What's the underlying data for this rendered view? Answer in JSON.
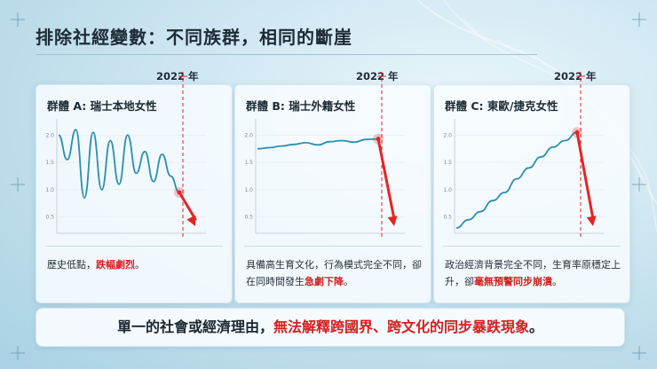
{
  "slide": {
    "title": "排除社經變數：不同族群，相同的斷崖",
    "marker_year": "2022 年",
    "colors": {
      "line": "#2c8fb0",
      "drop_arrow": "#e52423",
      "highlight_text": "#d2201f",
      "marker_line": "#e0242a"
    },
    "y_axis_ticks": [
      "2.0",
      "1.5",
      "1.0",
      "0.5"
    ]
  },
  "cards": [
    {
      "title": "群體 A: 瑞士本地女性",
      "text_before": "歷史低點，",
      "text_highlight": "跌幅劇烈",
      "text_after": "。"
    },
    {
      "title": "群體 B: 瑞士外籍女性",
      "text_before": "具備高生育文化，行為模式完全不同，卻在同時間發生",
      "text_highlight": "急劇下降",
      "text_after": "。"
    },
    {
      "title": "群體 C: 東歐/捷克女性",
      "text_before": "政治經濟背景完全不同，生育率原穩定上升，卻",
      "text_highlight": "毫無預警同步崩潰",
      "text_after": "。"
    }
  ],
  "banner": {
    "text_before": "單一的社會或經濟理由，",
    "text_highlight": "無法解釋跨國界、跨文化的同步暴跌現象",
    "text_after": "。"
  },
  "chart_data": [
    {
      "type": "line",
      "title": "群體 A: 瑞士本地女性",
      "ylim": [
        0.3,
        2.2
      ],
      "y_ticks": [
        2.0,
        1.5,
        1.0,
        0.5
      ],
      "x": [
        0,
        1,
        2,
        3,
        4,
        5,
        6,
        7,
        8,
        9,
        10,
        11,
        12,
        13,
        14
      ],
      "y": [
        2.0,
        1.55,
        2.1,
        0.85,
        2.05,
        1.0,
        1.9,
        1.1,
        2.0,
        1.3,
        1.7,
        1.15,
        1.65,
        1.25,
        0.95
      ],
      "marker_label": "2022 年",
      "after_marker": "sharp drop"
    },
    {
      "type": "line",
      "title": "群體 B: 瑞士外籍女性",
      "ylim": [
        0.3,
        2.2
      ],
      "y_ticks": [
        2.0,
        1.5,
        1.0,
        0.5
      ],
      "x": [
        0,
        1,
        2,
        3,
        4,
        5,
        6,
        7,
        8,
        9,
        10
      ],
      "y": [
        1.75,
        1.77,
        1.8,
        1.83,
        1.86,
        1.82,
        1.88,
        1.9,
        1.87,
        1.92,
        1.93
      ],
      "marker_label": "2022 年",
      "after_marker": "sharp drop"
    },
    {
      "type": "line",
      "title": "群體 C: 東歐/捷克女性",
      "ylim": [
        0.3,
        2.2
      ],
      "y_ticks": [
        2.0,
        1.5,
        1.0,
        0.5
      ],
      "x": [
        0,
        1,
        2,
        3,
        4,
        5,
        6,
        7,
        8,
        9,
        10
      ],
      "y": [
        0.3,
        0.45,
        0.6,
        0.8,
        0.95,
        1.2,
        1.4,
        1.6,
        1.78,
        1.9,
        2.05
      ],
      "marker_label": "2022 年",
      "after_marker": "sharp drop"
    }
  ]
}
